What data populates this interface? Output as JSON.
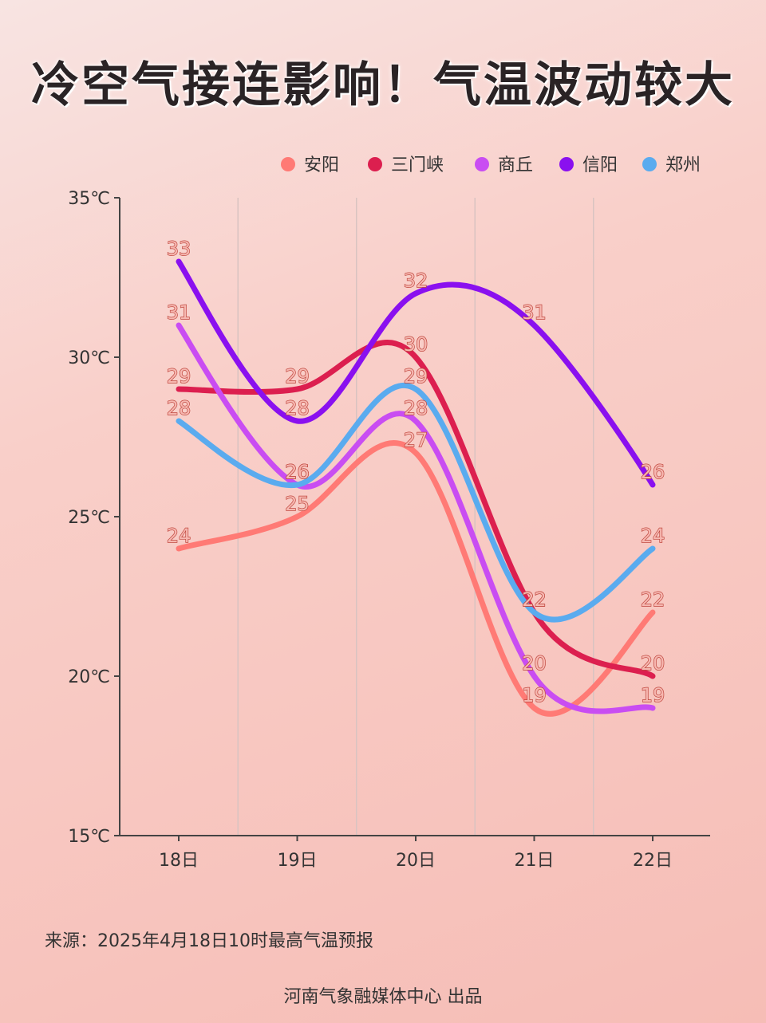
{
  "page": {
    "title": "冷空气接连影响！气温波动较大",
    "source": "来源：2025年4月18日10时最高气温预报",
    "credit": "河南气象融媒体中心  出品"
  },
  "chart_data": {
    "type": "line",
    "categories": [
      "18日",
      "19日",
      "20日",
      "21日",
      "22日"
    ],
    "ylim": [
      15,
      35
    ],
    "yticks": [
      "15℃",
      "20℃",
      "25℃",
      "30℃",
      "35℃"
    ],
    "ytick_values": [
      15,
      20,
      25,
      30,
      35
    ],
    "grid": "vertical",
    "legend": "top-right",
    "series": [
      {
        "name": "安阳",
        "color": "#ff7a75",
        "values": [
          24,
          25,
          27,
          19,
          22
        ]
      },
      {
        "name": "三门峡",
        "color": "#dc1f4f",
        "values": [
          29,
          29,
          30,
          22,
          20
        ]
      },
      {
        "name": "商丘",
        "color": "#c94df2",
        "values": [
          31,
          26,
          28,
          20,
          19
        ]
      },
      {
        "name": "信阳",
        "color": "#8a10ef",
        "values": [
          33,
          28,
          32,
          31,
          26
        ]
      },
      {
        "name": "郑州",
        "color": "#5aabef",
        "values": [
          28,
          26,
          29,
          22,
          24
        ]
      }
    ]
  }
}
